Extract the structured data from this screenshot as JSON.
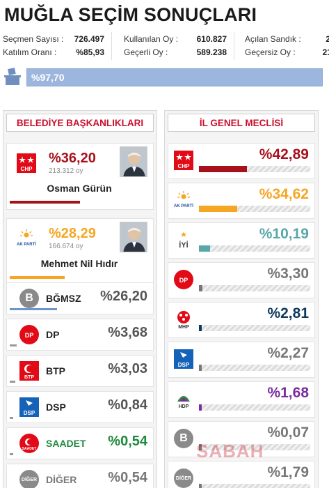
{
  "page": {
    "title": "MUĞLA SEÇİM SONUÇLARI"
  },
  "stats": {
    "secmen_sayisi_label": "Seçmen Sayısı :",
    "secmen_sayisi": "726.497",
    "katilim_orani_label": "Katılım Oranı :",
    "katilim_orani": "%85,93",
    "kullanilan_oy_label": "Kullanılan Oy :",
    "kullanilan_oy": "610.827",
    "gecerli_oy_label": "Geçerli Oy :",
    "gecerli_oy": "589.238",
    "acilan_sandik_label": "Açılan Sandık :",
    "acilan_sandik": "2",
    "gecersiz_oy_label": "Geçersiz Oy :",
    "gecersiz_oy": "21"
  },
  "turnout": {
    "text": "%97,70",
    "fraction": 0.977
  },
  "belediye": {
    "heading": "BELEDİYE BAŞKANLIKLARI",
    "featured": [
      {
        "party": "CHP",
        "pct": "%36,20",
        "votes": "213.312 oy",
        "candidate": "Osman Gürün",
        "color": "#a7111c",
        "share": 0.362
      },
      {
        "party": "AK PARTİ",
        "pct": "%28,29",
        "votes": "166.674 oy",
        "candidate": "Mehmet Nil Hıdır",
        "color": "#f5a623",
        "share": 0.2829
      }
    ],
    "others": [
      {
        "logo": "B",
        "name": "BĞMSZ",
        "pct": "%26,20",
        "name_color": "#222222",
        "pct_color": "#555555",
        "bar_color": "#6f95c9",
        "share": 0.262
      },
      {
        "logo": "DP",
        "name": "DP",
        "pct": "%3,68",
        "name_color": "#222222",
        "pct_color": "#555555",
        "bar_color": "#9a9a9a",
        "share": 0.0368
      },
      {
        "logo": "BTP",
        "name": "BTP",
        "pct": "%3,03",
        "name_color": "#222222",
        "pct_color": "#555555",
        "bar_color": "#9a9a9a",
        "share": 0.0303
      },
      {
        "logo": "DSP",
        "name": "DSP",
        "pct": "%0,84",
        "name_color": "#222222",
        "pct_color": "#555555",
        "bar_color": "#9a9a9a",
        "share": 0.0084
      },
      {
        "logo": "SAADET",
        "name": "SAADET",
        "pct": "%0,54",
        "name_color": "#1e8a3c",
        "pct_color": "#1e8a3c",
        "bar_color": "#9a9a9a",
        "share": 0.0054
      },
      {
        "logo": "DİĞER",
        "name": "DİĞER",
        "pct": "%0,54",
        "name_color": "#777777",
        "pct_color": "#777777",
        "bar_color": "#9a9a9a",
        "share": 0.0054
      }
    ]
  },
  "meclis": {
    "heading": "İL GENEL MECLİSİ",
    "rows": [
      {
        "logo": "CHP",
        "pct": "%42,89",
        "color": "#a7111c",
        "share": 0.4289
      },
      {
        "logo": "AK PARTİ",
        "pct": "%34,62",
        "color": "#f5a623",
        "share": 0.3462
      },
      {
        "logo": "İYİ",
        "pct": "%10,19",
        "color": "#5aa7a8",
        "share": 0.1019
      },
      {
        "logo": "DP",
        "pct": "%3,30",
        "color": "#777777",
        "share": 0.033
      },
      {
        "logo": "MHP",
        "pct": "%2,81",
        "color": "#0d3a5c",
        "share": 0.0281
      },
      {
        "logo": "DSP",
        "pct": "%2,27",
        "color": "#777777",
        "share": 0.0227
      },
      {
        "logo": "HDP",
        "pct": "%1,68",
        "color": "#7b2d9e",
        "share": 0.0168
      },
      {
        "logo": "B",
        "pct": "%0,07",
        "color": "#777777",
        "share": 0.0007
      },
      {
        "logo": "DİĞER",
        "pct": "%1,79",
        "color": "#777777",
        "share": 0.0179
      }
    ]
  },
  "watermark": "SABAH"
}
